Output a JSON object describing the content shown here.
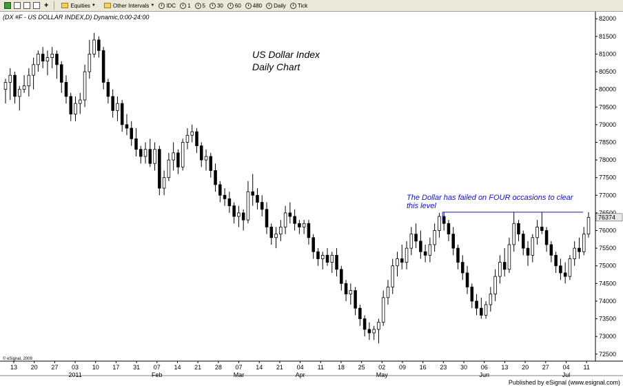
{
  "toolbar": {
    "equities_label": "Equities",
    "other_intervals_label": "Other Intervals",
    "intervals": [
      "IDC",
      "1",
      "5",
      "30",
      "60",
      "480",
      "Daily",
      "Tick"
    ]
  },
  "chart_header": "(DX #F - US DOLLAR INDEX,D) Dynamic,0:00-24:00",
  "watermark": "© eSignal, 2009",
  "published_by": "Published by eSignal (www.esignal.com)",
  "chart_data": {
    "type": "candlestick",
    "title": "US Dollar Index",
    "subtitle": "Daily Chart",
    "ylim": [
      72300,
      82200
    ],
    "y_ticks": [
      72500,
      73000,
      73500,
      74000,
      74500,
      75000,
      75500,
      76000,
      76500,
      77000,
      77500,
      78000,
      78500,
      79000,
      79500,
      80000,
      80500,
      81000,
      81500,
      82000
    ],
    "last_price": 76374,
    "x_tick_labels": [
      "13",
      "20",
      "27",
      "03",
      "10",
      "17",
      "31",
      "07",
      "14",
      "21",
      "28",
      "07",
      "14",
      "21",
      "04",
      "11",
      "18",
      "25",
      "02",
      "09",
      "16",
      "23",
      "30",
      "06",
      "13",
      "20",
      "27",
      "04",
      "11"
    ],
    "month_labels": [
      {
        "label": "2011",
        "at_tick": 3
      },
      {
        "label": "Feb",
        "at_tick": 7
      },
      {
        "label": "Mar",
        "at_tick": 11
      },
      {
        "label": "Apr",
        "at_tick": 14
      },
      {
        "label": "May",
        "at_tick": 18
      },
      {
        "label": "Jun",
        "at_tick": 23
      },
      {
        "label": "Jul",
        "at_tick": 27
      }
    ],
    "resistance_level": 76520,
    "annotation": [
      "The Dollar has failed on FOUR occasions to clear",
      "this level"
    ],
    "colors": {
      "up_candle": "#ffffff",
      "down_candle": "#000000",
      "resistance": "#1010c0",
      "annotation": "#1010c0"
    },
    "candles": [
      {
        "o": 80000,
        "h": 80300,
        "l": 79600,
        "c": 80200
      },
      {
        "o": 80200,
        "h": 80600,
        "l": 79700,
        "c": 80400
      },
      {
        "o": 80400,
        "h": 80500,
        "l": 79600,
        "c": 79800
      },
      {
        "o": 79800,
        "h": 80100,
        "l": 79400,
        "c": 80000
      },
      {
        "o": 80000,
        "h": 80400,
        "l": 79900,
        "c": 80100
      },
      {
        "o": 80100,
        "h": 80600,
        "l": 79800,
        "c": 80400
      },
      {
        "o": 80400,
        "h": 80900,
        "l": 80000,
        "c": 80700
      },
      {
        "o": 80700,
        "h": 81100,
        "l": 80500,
        "c": 81000
      },
      {
        "o": 81000,
        "h": 81200,
        "l": 80600,
        "c": 80800
      },
      {
        "o": 80800,
        "h": 81100,
        "l": 80400,
        "c": 80900
      },
      {
        "o": 80900,
        "h": 81200,
        "l": 80600,
        "c": 81000
      },
      {
        "o": 81000,
        "h": 81100,
        "l": 80300,
        "c": 80700
      },
      {
        "o": 80700,
        "h": 80800,
        "l": 79900,
        "c": 80200
      },
      {
        "o": 80200,
        "h": 80400,
        "l": 79600,
        "c": 79800
      },
      {
        "o": 79800,
        "h": 79900,
        "l": 79100,
        "c": 79300
      },
      {
        "o": 79300,
        "h": 79800,
        "l": 79100,
        "c": 79600
      },
      {
        "o": 79600,
        "h": 79900,
        "l": 79300,
        "c": 79700
      },
      {
        "o": 79700,
        "h": 80700,
        "l": 79500,
        "c": 80500
      },
      {
        "o": 80500,
        "h": 81400,
        "l": 80300,
        "c": 81000
      },
      {
        "o": 81000,
        "h": 81600,
        "l": 80900,
        "c": 81400
      },
      {
        "o": 81400,
        "h": 81500,
        "l": 80900,
        "c": 81100
      },
      {
        "o": 81100,
        "h": 81200,
        "l": 80000,
        "c": 80200
      },
      {
        "o": 80200,
        "h": 80300,
        "l": 79600,
        "c": 79800
      },
      {
        "o": 79800,
        "h": 80000,
        "l": 79200,
        "c": 79400
      },
      {
        "o": 79400,
        "h": 79800,
        "l": 79100,
        "c": 79600
      },
      {
        "o": 79600,
        "h": 79700,
        "l": 78800,
        "c": 79000
      },
      {
        "o": 79000,
        "h": 79300,
        "l": 78700,
        "c": 78900
      },
      {
        "o": 78900,
        "h": 79100,
        "l": 78400,
        "c": 78600
      },
      {
        "o": 78600,
        "h": 78900,
        "l": 78100,
        "c": 78300
      },
      {
        "o": 78300,
        "h": 78400,
        "l": 77900,
        "c": 78100
      },
      {
        "o": 78100,
        "h": 78500,
        "l": 77900,
        "c": 78300
      },
      {
        "o": 78300,
        "h": 78600,
        "l": 77800,
        "c": 77900
      },
      {
        "o": 77900,
        "h": 78500,
        "l": 77700,
        "c": 78300
      },
      {
        "o": 78300,
        "h": 78400,
        "l": 77000,
        "c": 77200
      },
      {
        "o": 77200,
        "h": 77700,
        "l": 77000,
        "c": 77500
      },
      {
        "o": 77500,
        "h": 78200,
        "l": 77400,
        "c": 78000
      },
      {
        "o": 78000,
        "h": 78500,
        "l": 77700,
        "c": 78200
      },
      {
        "o": 78200,
        "h": 78300,
        "l": 77600,
        "c": 77800
      },
      {
        "o": 77800,
        "h": 78600,
        "l": 77700,
        "c": 78500
      },
      {
        "o": 78500,
        "h": 78900,
        "l": 78300,
        "c": 78700
      },
      {
        "o": 78700,
        "h": 79000,
        "l": 78500,
        "c": 78800
      },
      {
        "o": 78800,
        "h": 78900,
        "l": 78200,
        "c": 78400
      },
      {
        "o": 78400,
        "h": 78500,
        "l": 77800,
        "c": 78000
      },
      {
        "o": 78000,
        "h": 78300,
        "l": 77700,
        "c": 78100
      },
      {
        "o": 78100,
        "h": 78200,
        "l": 77500,
        "c": 77700
      },
      {
        "o": 77700,
        "h": 77900,
        "l": 77100,
        "c": 77300
      },
      {
        "o": 77300,
        "h": 77400,
        "l": 76800,
        "c": 77000
      },
      {
        "o": 77000,
        "h": 77200,
        "l": 76700,
        "c": 76900
      },
      {
        "o": 76900,
        "h": 77100,
        "l": 76500,
        "c": 76700
      },
      {
        "o": 76700,
        "h": 76800,
        "l": 76200,
        "c": 76400
      },
      {
        "o": 76400,
        "h": 76700,
        "l": 76100,
        "c": 76500
      },
      {
        "o": 76500,
        "h": 76600,
        "l": 76000,
        "c": 76300
      },
      {
        "o": 76300,
        "h": 77400,
        "l": 76200,
        "c": 77100
      },
      {
        "o": 77100,
        "h": 77600,
        "l": 76700,
        "c": 77000
      },
      {
        "o": 77000,
        "h": 77200,
        "l": 76600,
        "c": 76800
      },
      {
        "o": 76800,
        "h": 77000,
        "l": 76400,
        "c": 76600
      },
      {
        "o": 76600,
        "h": 76800,
        "l": 75900,
        "c": 76100
      },
      {
        "o": 76100,
        "h": 76200,
        "l": 75600,
        "c": 75800
      },
      {
        "o": 75800,
        "h": 76100,
        "l": 75500,
        "c": 75900
      },
      {
        "o": 75900,
        "h": 76300,
        "l": 75700,
        "c": 76100
      },
      {
        "o": 76100,
        "h": 76700,
        "l": 75900,
        "c": 76500
      },
      {
        "o": 76500,
        "h": 76800,
        "l": 76200,
        "c": 76400
      },
      {
        "o": 76400,
        "h": 76600,
        "l": 76000,
        "c": 76200
      },
      {
        "o": 76200,
        "h": 76300,
        "l": 75900,
        "c": 76100
      },
      {
        "o": 76100,
        "h": 76300,
        "l": 75900,
        "c": 76200
      },
      {
        "o": 76200,
        "h": 76300,
        "l": 75600,
        "c": 75800
      },
      {
        "o": 75800,
        "h": 75900,
        "l": 75200,
        "c": 75400
      },
      {
        "o": 75400,
        "h": 75500,
        "l": 75000,
        "c": 75200
      },
      {
        "o": 75200,
        "h": 75400,
        "l": 74900,
        "c": 75300
      },
      {
        "o": 75300,
        "h": 75500,
        "l": 75000,
        "c": 75100
      },
      {
        "o": 75100,
        "h": 75400,
        "l": 74800,
        "c": 75300
      },
      {
        "o": 75300,
        "h": 75500,
        "l": 74700,
        "c": 74900
      },
      {
        "o": 74900,
        "h": 75000,
        "l": 74300,
        "c": 74500
      },
      {
        "o": 74500,
        "h": 74600,
        "l": 74000,
        "c": 74200
      },
      {
        "o": 74200,
        "h": 74500,
        "l": 73900,
        "c": 74300
      },
      {
        "o": 74300,
        "h": 74400,
        "l": 73600,
        "c": 73800
      },
      {
        "o": 73800,
        "h": 73900,
        "l": 73300,
        "c": 73500
      },
      {
        "o": 73500,
        "h": 73600,
        "l": 73000,
        "c": 73200
      },
      {
        "o": 73200,
        "h": 73400,
        "l": 72900,
        "c": 73100
      },
      {
        "o": 73100,
        "h": 73300,
        "l": 72900,
        "c": 73200
      },
      {
        "o": 73200,
        "h": 73500,
        "l": 72800,
        "c": 73400
      },
      {
        "o": 73400,
        "h": 74300,
        "l": 73300,
        "c": 74100
      },
      {
        "o": 74100,
        "h": 74600,
        "l": 73900,
        "c": 74400
      },
      {
        "o": 74400,
        "h": 75200,
        "l": 74200,
        "c": 75000
      },
      {
        "o": 75000,
        "h": 75400,
        "l": 74700,
        "c": 75200
      },
      {
        "o": 75200,
        "h": 75600,
        "l": 74900,
        "c": 75100
      },
      {
        "o": 75100,
        "h": 75700,
        "l": 74900,
        "c": 75500
      },
      {
        "o": 75500,
        "h": 76100,
        "l": 75300,
        "c": 75900
      },
      {
        "o": 75900,
        "h": 76200,
        "l": 75500,
        "c": 75700
      },
      {
        "o": 75700,
        "h": 76000,
        "l": 75200,
        "c": 75400
      },
      {
        "o": 75400,
        "h": 75600,
        "l": 75100,
        "c": 75300
      },
      {
        "o": 75300,
        "h": 75800,
        "l": 75100,
        "c": 75600
      },
      {
        "o": 75600,
        "h": 76200,
        "l": 75400,
        "c": 76000
      },
      {
        "o": 76000,
        "h": 76500,
        "l": 75800,
        "c": 76400
      },
      {
        "o": 76400,
        "h": 76520,
        "l": 76000,
        "c": 76200
      },
      {
        "o": 76200,
        "h": 76300,
        "l": 75700,
        "c": 75900
      },
      {
        "o": 75900,
        "h": 76100,
        "l": 75300,
        "c": 75500
      },
      {
        "o": 75500,
        "h": 75600,
        "l": 74900,
        "c": 75100
      },
      {
        "o": 75100,
        "h": 75300,
        "l": 74600,
        "c": 74800
      },
      {
        "o": 74800,
        "h": 75000,
        "l": 74200,
        "c": 74400
      },
      {
        "o": 74400,
        "h": 74500,
        "l": 73800,
        "c": 74000
      },
      {
        "o": 74000,
        "h": 74200,
        "l": 73600,
        "c": 73800
      },
      {
        "o": 73800,
        "h": 74100,
        "l": 73500,
        "c": 73600
      },
      {
        "o": 73600,
        "h": 74000,
        "l": 73500,
        "c": 73900
      },
      {
        "o": 73900,
        "h": 74400,
        "l": 73700,
        "c": 74200
      },
      {
        "o": 74200,
        "h": 74900,
        "l": 74000,
        "c": 74700
      },
      {
        "o": 74700,
        "h": 75300,
        "l": 74500,
        "c": 75100
      },
      {
        "o": 75100,
        "h": 75500,
        "l": 74700,
        "c": 74900
      },
      {
        "o": 74900,
        "h": 75800,
        "l": 74800,
        "c": 75600
      },
      {
        "o": 75600,
        "h": 76520,
        "l": 75400,
        "c": 76200
      },
      {
        "o": 76200,
        "h": 76300,
        "l": 75700,
        "c": 75900
      },
      {
        "o": 75900,
        "h": 76000,
        "l": 75300,
        "c": 75500
      },
      {
        "o": 75500,
        "h": 75700,
        "l": 75000,
        "c": 75300
      },
      {
        "o": 75300,
        "h": 75900,
        "l": 75100,
        "c": 75800
      },
      {
        "o": 75800,
        "h": 76300,
        "l": 75600,
        "c": 76100
      },
      {
        "o": 76100,
        "h": 76520,
        "l": 75900,
        "c": 76000
      },
      {
        "o": 76000,
        "h": 76100,
        "l": 75400,
        "c": 75600
      },
      {
        "o": 75600,
        "h": 75700,
        "l": 75100,
        "c": 75300
      },
      {
        "o": 75300,
        "h": 75400,
        "l": 74800,
        "c": 75000
      },
      {
        "o": 75000,
        "h": 75200,
        "l": 74600,
        "c": 74800
      },
      {
        "o": 74800,
        "h": 75100,
        "l": 74500,
        "c": 74700
      },
      {
        "o": 74700,
        "h": 75300,
        "l": 74600,
        "c": 75200
      },
      {
        "o": 75200,
        "h": 75700,
        "l": 75000,
        "c": 75500
      },
      {
        "o": 75500,
        "h": 75800,
        "l": 75200,
        "c": 75400
      },
      {
        "o": 75400,
        "h": 76100,
        "l": 75300,
        "c": 75900
      },
      {
        "o": 75900,
        "h": 76520,
        "l": 75800,
        "c": 76374
      }
    ]
  }
}
